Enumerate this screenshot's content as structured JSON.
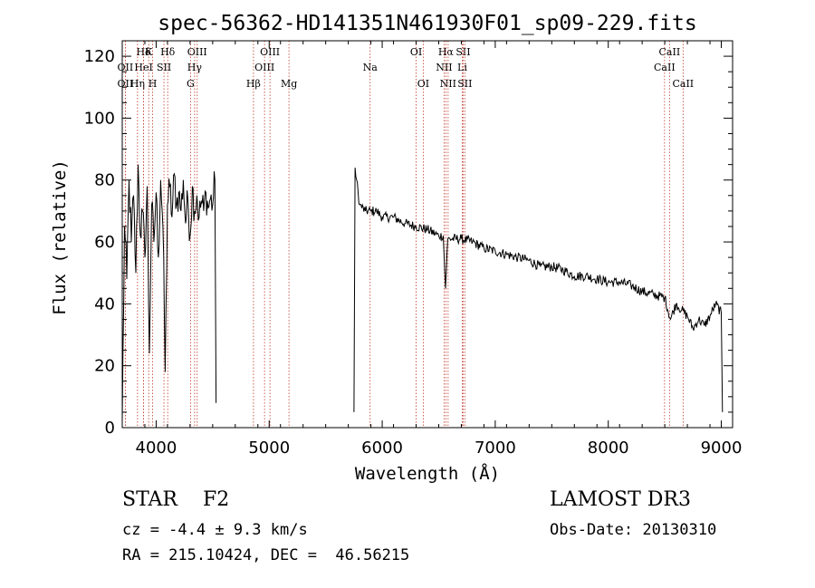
{
  "chart_data": {
    "type": "line",
    "title": "spec-56362-HD141351N461930F01_sp09-229.fits",
    "xlabel": "Wavelength (Å)",
    "ylabel": "Flux (relative)",
    "xlim": [
      3700,
      9100
    ],
    "ylim": [
      0,
      125
    ],
    "xticks": [
      4000,
      5000,
      6000,
      7000,
      8000,
      9000
    ],
    "xtick_labels": [
      "4000",
      "5000",
      "6000",
      "7000",
      "8000",
      "9000"
    ],
    "yticks": [
      0,
      20,
      40,
      60,
      80,
      100,
      120
    ],
    "ytick_labels": [
      "0",
      "20",
      "40",
      "60",
      "80",
      "100",
      "120"
    ],
    "grid": false,
    "series": [
      {
        "name": "spectrum",
        "segments": [
          {
            "x": [
              3700,
              3720,
              3740,
              3760,
              3780,
              3800,
              3820,
              3840,
              3860,
              3880,
              3900,
              3920,
              3940,
              3960,
              3980,
              4000,
              4020,
              4040,
              4060,
              4080,
              4100,
              4120,
              4140,
              4160,
              4180,
              4200,
              4220,
              4240,
              4260,
              4280,
              4300,
              4320,
              4340,
              4360,
              4380,
              4400,
              4420,
              4440,
              4460,
              4480,
              4500,
              4520,
              4530
            ],
            "y": [
              2,
              65,
              48,
              80,
              60,
              75,
              50,
              85,
              62,
              70,
              55,
              78,
              24,
              72,
              60,
              76,
              55,
              80,
              65,
              18,
              72,
              78,
              68,
              82,
              72,
              76,
              70,
              80,
              66,
              74,
              62,
              78,
              70,
              75,
              68,
              73,
              70,
              76,
              71,
              74,
              72,
              80,
              8
            ]
          },
          {
            "x": [
              5750,
              5760,
              5800,
              5850,
              5900,
              5950,
              6000,
              6100,
              6200,
              6300,
              6400,
              6500,
              6540,
              6560,
              6580,
              6600,
              6700,
              6800,
              6900,
              7000,
              7100,
              7200,
              7300,
              7400,
              7500,
              7600,
              7700,
              7800,
              7900,
              8000,
              8100,
              8200,
              8300,
              8400,
              8500,
              8550,
              8600,
              8650,
              8700,
              8750,
              8800,
              8850,
              8900,
              8950,
              9000,
              9010
            ],
            "y": [
              5,
              84,
              72,
              70,
              70,
              70,
              68,
              68,
              66,
              65,
              64,
              62,
              62,
              45,
              61,
              61,
              61,
              60,
              58,
              57,
              56,
              55,
              54,
              52,
              52,
              51,
              49,
              49,
              48,
              47,
              47,
              46,
              44,
              43,
              42,
              35,
              40,
              38,
              36,
              32,
              35,
              33,
              36,
              40,
              37,
              5
            ]
          }
        ]
      }
    ],
    "lines": [
      {
        "label": "Hδ",
        "x": 3889,
        "row": 1
      },
      {
        "label": "OII",
        "x": 3727,
        "row": 2
      },
      {
        "label": "OII",
        "x": 3727,
        "row": 3
      },
      {
        "label": "K",
        "x": 3934,
        "row": 1
      },
      {
        "label": "HeI",
        "x": 3889,
        "row": 2
      },
      {
        "label": "Hη",
        "x": 3835,
        "row": 3
      },
      {
        "label": "SII",
        "x": 4069,
        "row": 2
      },
      {
        "label": "H",
        "x": 3969,
        "row": 3
      },
      {
        "label": "Hδ",
        "x": 4102,
        "row": 1
      },
      {
        "label": "OIII",
        "x": 4363,
        "row": 1
      },
      {
        "label": "Hγ",
        "x": 4340,
        "row": 2
      },
      {
        "label": "G",
        "x": 4304,
        "row": 3
      },
      {
        "label": "OIII",
        "x": 5007,
        "row": 1
      },
      {
        "label": "OIII",
        "x": 4959,
        "row": 2
      },
      {
        "label": "Hβ",
        "x": 4861,
        "row": 3
      },
      {
        "label": "Mg",
        "x": 5175,
        "row": 3
      },
      {
        "label": "Na",
        "x": 5893,
        "row": 2
      },
      {
        "label": "OI",
        "x": 6300,
        "row": 1
      },
      {
        "label": "OI",
        "x": 6363,
        "row": 3
      },
      {
        "label": "Hα",
        "x": 6563,
        "row": 1
      },
      {
        "label": "SII",
        "x": 6716,
        "row": 1
      },
      {
        "label": "NII",
        "x": 6548,
        "row": 2
      },
      {
        "label": "Li",
        "x": 6708,
        "row": 2
      },
      {
        "label": "NII",
        "x": 6583,
        "row": 3
      },
      {
        "label": "SII",
        "x": 6731,
        "row": 3
      },
      {
        "label": "CaII",
        "x": 8542,
        "row": 1
      },
      {
        "label": "CaII",
        "x": 8498,
        "row": 2
      },
      {
        "label": "CaII",
        "x": 8662,
        "row": 3
      }
    ]
  },
  "info": {
    "class": "STAR    F2",
    "survey": "LAMOST DR3",
    "redshift": "cz = -4.4 ± 9.3 km/s",
    "obsdate": "Obs-Date: 20130310",
    "coords": "RA = 215.10424, DEC =  46.56215"
  }
}
